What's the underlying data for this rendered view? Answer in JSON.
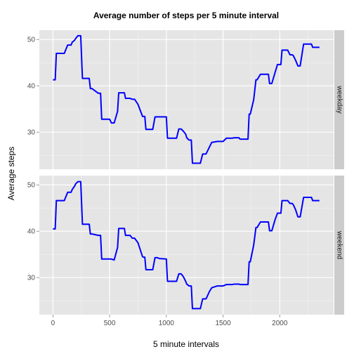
{
  "chart_data": {
    "type": "line",
    "title": "Average number of steps per 5 minute interval",
    "xlabel": "5 minute intervals",
    "ylabel": "Average steps",
    "xlim": [
      -120,
      2475
    ],
    "ylim": [
      22,
      52
    ],
    "x_ticks": [
      0,
      500,
      1000,
      1500,
      2000
    ],
    "y_ticks": [
      30,
      40,
      50
    ],
    "grid": true,
    "facet_strip_position": "right",
    "line_color": "#0000ff",
    "panel_background": "#e5e5e5",
    "strip_background": "#cccccc",
    "panels": [
      {
        "label": "weekday",
        "series": [
          {
            "x": [
              0,
              20,
              30,
              50,
              100,
              130,
              160,
              170,
              190,
              200,
              220,
              230,
              245,
              260,
              300,
              320,
              330,
              345,
              400,
              420,
              430,
              445,
              500,
              515,
              540,
              570,
              580,
              600,
              630,
              640,
              650,
              680,
              700,
              720,
              750,
              790,
              800,
              810,
              820,
              840,
              880,
              900,
              920,
              940,
              1000,
              1010,
              1020,
              1050,
              1090,
              1110,
              1130,
              1150,
              1170,
              1180,
              1200,
              1210,
              1220,
              1230,
              1240,
              1250,
              1300,
              1320,
              1330,
              1350,
              1380,
              1400,
              1450,
              1480,
              1500,
              1530,
              1580,
              1600,
              1640,
              1650,
              1700,
              1720,
              1730,
              1740,
              1770,
              1790,
              1800,
              1830,
              1850,
              1870,
              1900,
              1910,
              1920,
              1930,
              1960,
              1980,
              2000,
              2010,
              2020,
              2040,
              2060,
              2070,
              2090,
              2110,
              2120,
              2140,
              2160,
              2170,
              2180,
              2210,
              2240,
              2260,
              2280,
              2290,
              2320,
              2350
            ],
            "y": [
              41.3,
              41.3,
              47,
              47,
              47,
              48.8,
              48.8,
              49.4,
              49.8,
              50.2,
              50.8,
              50.8,
              50.8,
              41.6,
              41.6,
              41.6,
              39.4,
              39.4,
              38.4,
              38.4,
              32.8,
              32.8,
              32.8,
              32,
              32,
              34.5,
              38.5,
              38.5,
              38.5,
              37.3,
              37.3,
              37.3,
              37.1,
              37.1,
              36,
              33.4,
              33.4,
              33.4,
              30.6,
              30.6,
              30.6,
              33.3,
              33.3,
              33.3,
              33.3,
              28.7,
              28.7,
              28.7,
              28.7,
              30.7,
              30.7,
              30.2,
              29.6,
              28.8,
              28.3,
              28.3,
              28.3,
              23.3,
              23.3,
              23.3,
              23.3,
              25.3,
              25.3,
              25.3,
              26.8,
              27.8,
              28,
              28,
              28,
              28.7,
              28.7,
              28.8,
              28.8,
              28.5,
              28.5,
              28.5,
              33.9,
              33.9,
              37,
              41.3,
              41.3,
              42.5,
              42.5,
              42.5,
              42.5,
              40.5,
              40.5,
              40.5,
              43,
              44.6,
              44.6,
              44.6,
              47.7,
              47.7,
              47.7,
              47.7,
              46.7,
              46.7,
              46.5,
              45.5,
              44.3,
              44.3,
              44.3,
              49,
              49,
              49,
              49,
              48.3,
              48.3,
              48.3
            ]
          }
        ]
      },
      {
        "label": "weekend",
        "series": [
          {
            "x": [
              0,
              20,
              30,
              50,
              100,
              130,
              160,
              170,
              190,
              200,
              220,
              230,
              245,
              260,
              300,
              320,
              330,
              345,
              400,
              420,
              430,
              445,
              500,
              515,
              540,
              570,
              580,
              600,
              630,
              640,
              650,
              680,
              700,
              720,
              750,
              790,
              800,
              810,
              820,
              840,
              880,
              900,
              920,
              940,
              1000,
              1010,
              1020,
              1050,
              1090,
              1110,
              1130,
              1150,
              1170,
              1180,
              1200,
              1210,
              1220,
              1230,
              1240,
              1250,
              1300,
              1320,
              1330,
              1350,
              1380,
              1400,
              1450,
              1480,
              1500,
              1530,
              1580,
              1600,
              1640,
              1650,
              1700,
              1720,
              1730,
              1740,
              1770,
              1790,
              1800,
              1830,
              1850,
              1870,
              1900,
              1910,
              1920,
              1930,
              1960,
              1980,
              2000,
              2010,
              2020,
              2040,
              2060,
              2070,
              2090,
              2110,
              2120,
              2140,
              2160,
              2170,
              2180,
              2210,
              2240,
              2260,
              2280,
              2290,
              2320,
              2350
            ],
            "y": [
              40.5,
              40.5,
              46.6,
              46.6,
              46.6,
              48.4,
              48.4,
              49,
              49.7,
              50.2,
              50.7,
              50.7,
              50.7,
              41.5,
              41.5,
              41.5,
              39.4,
              39.4,
              39.1,
              39.1,
              34,
              34,
              34,
              34,
              33.8,
              36.5,
              40.6,
              40.6,
              40.6,
              39.1,
              39.1,
              39.1,
              38.5,
              38.5,
              37.5,
              34.5,
              34.4,
              34.4,
              31.7,
              31.7,
              31.7,
              34.3,
              34.3,
              34.1,
              34,
              29.2,
              29.2,
              29.2,
              29.2,
              30.8,
              30.8,
              30.2,
              29.2,
              28.6,
              28.2,
              28.2,
              28.2,
              23.3,
              23.3,
              23.3,
              23.3,
              25.4,
              25.4,
              25.4,
              27,
              27.8,
              28.2,
              28.2,
              28.2,
              28.5,
              28.5,
              28.6,
              28.6,
              28.5,
              28.5,
              28.5,
              33.4,
              33.4,
              37,
              40.8,
              40.8,
              42,
              42,
              42,
              42,
              40.1,
              40.1,
              40.1,
              42.6,
              43.9,
              43.9,
              43.9,
              46.6,
              46.6,
              46.6,
              46.6,
              46,
              46,
              45.7,
              44.6,
              43.1,
              43.1,
              43.1,
              47.3,
              47.3,
              47.3,
              47.3,
              46.6,
              46.6,
              46.6
            ]
          }
        ]
      }
    ]
  }
}
